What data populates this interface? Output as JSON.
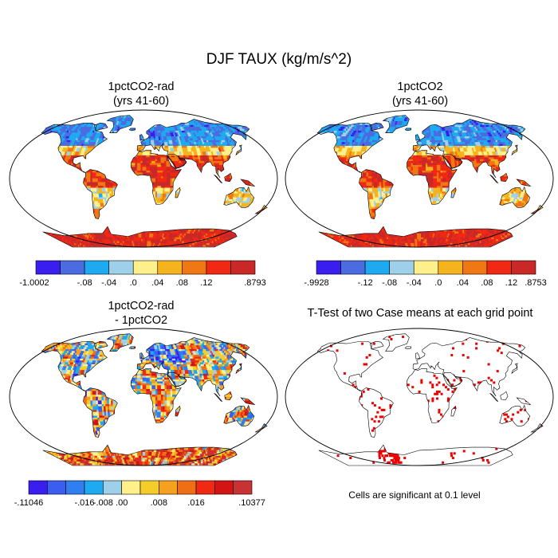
{
  "title": "DJF TAUX (kg/m/s^2)",
  "panels": [
    {
      "id": "p1",
      "title_lines": [
        "1pctCO2-rad",
        "(yrs 41-60)"
      ],
      "kind": "field"
    },
    {
      "id": "p2",
      "title_lines": [
        "1pctCO2",
        "(yrs 41-60)"
      ],
      "kind": "field"
    },
    {
      "id": "p3",
      "title_lines": [
        "1pctCO2-rad",
        "- 1pctCO2"
      ],
      "kind": "diff"
    },
    {
      "id": "p4",
      "title_lines": [
        "T-Test of two Case means at each grid point"
      ],
      "kind": "ttest"
    }
  ],
  "colorbars": [
    {
      "id": "cb1",
      "colors": [
        "#3a1ef0",
        "#4a6ce0",
        "#1eaaf0",
        "#9fd0ea",
        "#fff08c",
        "#f5b41e",
        "#f07814",
        "#f02814",
        "#c82828"
      ],
      "labels": [
        "-1.0002",
        "-.08",
        "-.04",
        ".0",
        ".04",
        ".08",
        ".12",
        ".8793"
      ]
    },
    {
      "id": "cb2",
      "colors": [
        "#3a1ef0",
        "#4a6ce0",
        "#1eaaf0",
        "#9fd0ea",
        "#fff08c",
        "#f5b41e",
        "#f07814",
        "#f02814",
        "#c82828"
      ],
      "labels": [
        "-.9928",
        "-.12",
        "-.08",
        "-.04",
        ".0",
        ".04",
        ".08",
        ".12",
        ".8753"
      ]
    },
    {
      "id": "cb3",
      "colors": [
        "#3a1ef0",
        "#3c5ef0",
        "#2f7ff0",
        "#1eaaf0",
        "#9fd0ea",
        "#fff08c",
        "#f5cd28",
        "#f5a01e",
        "#f06e14",
        "#f02814",
        "#d21414",
        "#c83232"
      ],
      "labels": [
        "-.11046",
        "-.016",
        "-.008",
        ".00",
        ".008",
        ".016",
        ".10377"
      ]
    }
  ],
  "significance_note": "Cells are significant at 0.1 level"
}
